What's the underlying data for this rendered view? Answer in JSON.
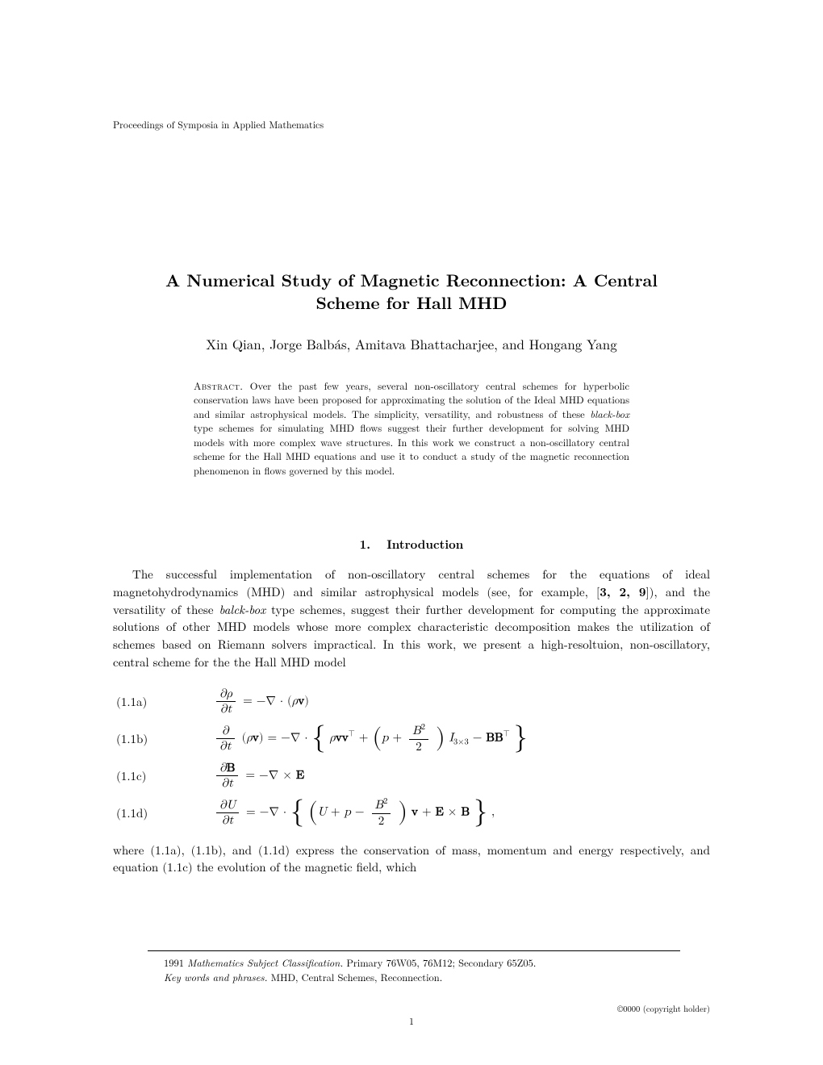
{
  "proceedings": "Proceedings of Symposia in Applied Mathematics",
  "title_line1": "A Numerical Study of Magnetic Reconnection: A Central",
  "title_line2": "Scheme for Hall MHD",
  "authors": "Xin Qian, Jorge Balbás, Amitava Bhattacharjee, and Hongang Yang",
  "abstract_label": "Abstract.",
  "abstract_text": " Over the past few years, several non-oscillatory central schemes for hyperbolic conservation laws have been proposed for approximating the solution of the Ideal MHD equations and similar astrophysical models. The simplicity, versatility, and robustness of these ",
  "abstract_italic": "black-box",
  "abstract_text2": " type schemes for simulating MHD flows suggest their further development for solving MHD models with more complex wave structures. In this work we construct a non-oscillatory central scheme for the Hall MHD equations and use it to conduct a study of the magnetic reconnection phenomenon in flows governed by this model.",
  "section_number": "1.",
  "section_title": "Introduction",
  "intro_p1a": "The successful implementation of non-oscillatory central schemes for the equations of ideal magnetohydrodynamics (MHD) and similar astrophysical models (see, for example, [",
  "intro_refs": "3, 2, 9",
  "intro_p1b": "]), and the versatility of these ",
  "intro_italic": "balck-box",
  "intro_p1c": " type schemes, suggest their further development for computing the approximate solutions of other MHD models whose more complex characteristic decomposition makes the utilization of schemes based on Riemann solvers impractical. In this work, we present a high-resoltuion, non-oscillatory, central scheme for the the Hall MHD model",
  "equations": {
    "e1": {
      "num": "(1.1a)"
    },
    "e2": {
      "num": "(1.1b)"
    },
    "e3": {
      "num": "(1.1c)"
    },
    "e4": {
      "num": "(1.1d)"
    }
  },
  "closing_text": "where (1.1a), (1.1b), and (1.1d) express the conservation of mass, momentum and energy respectively, and equation (1.1c) the evolution of the magnetic field, which",
  "footnote_msc_label": "Mathematics Subject Classification.",
  "footnote_msc_year": "1991 ",
  "footnote_msc_text": " Primary 76W05, 76M12; Secondary 65Z05.",
  "footnote_keywords_label": "Key words and phrases.",
  "footnote_keywords_text": " MHD, Central Schemes, Reconnection.",
  "copyright": "©0000 (copyright holder)",
  "page_number": "1"
}
